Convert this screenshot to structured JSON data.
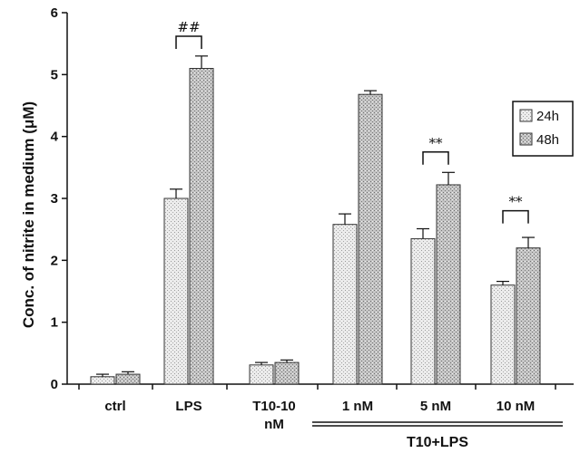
{
  "chart_data": {
    "type": "bar",
    "ylabel": "Conc. of nitrite in medium (μM)",
    "xlabel": "",
    "ylim": [
      0,
      6
    ],
    "yticks": [
      0,
      1,
      2,
      3,
      4,
      5,
      6
    ],
    "categories": [
      "ctrl",
      "LPS",
      "T10-10 nM",
      "1 nM",
      "5 nM",
      "10 nM"
    ],
    "category_lines": [
      [
        "ctrl"
      ],
      [
        "LPS"
      ],
      [
        "T10-10",
        "nM"
      ],
      [
        "1 nM"
      ],
      [
        "5 nM"
      ],
      [
        "10 nM"
      ]
    ],
    "series": [
      {
        "name": "24h",
        "values": [
          0.12,
          3.0,
          0.31,
          2.58,
          2.35,
          1.6
        ],
        "errors": [
          0.04,
          0.15,
          0.04,
          0.17,
          0.16,
          0.06
        ],
        "color": "#e6e6e6"
      },
      {
        "name": "48h",
        "values": [
          0.16,
          5.1,
          0.35,
          4.68,
          3.22,
          2.2
        ],
        "errors": [
          0.04,
          0.2,
          0.04,
          0.06,
          0.2,
          0.17
        ],
        "color": "#b8b8b8"
      }
    ],
    "legend_position": "right",
    "group_label": {
      "text": "T10+LPS",
      "categories": [
        "1 nM",
        "5 nM",
        "10 nM"
      ]
    },
    "annotations": [
      {
        "text": "##",
        "category": "LPS",
        "y": 5.62
      },
      {
        "text": "**",
        "category": "5 nM",
        "y": 3.75
      },
      {
        "text": "**",
        "category": "10 nM",
        "y": 2.8
      }
    ]
  }
}
